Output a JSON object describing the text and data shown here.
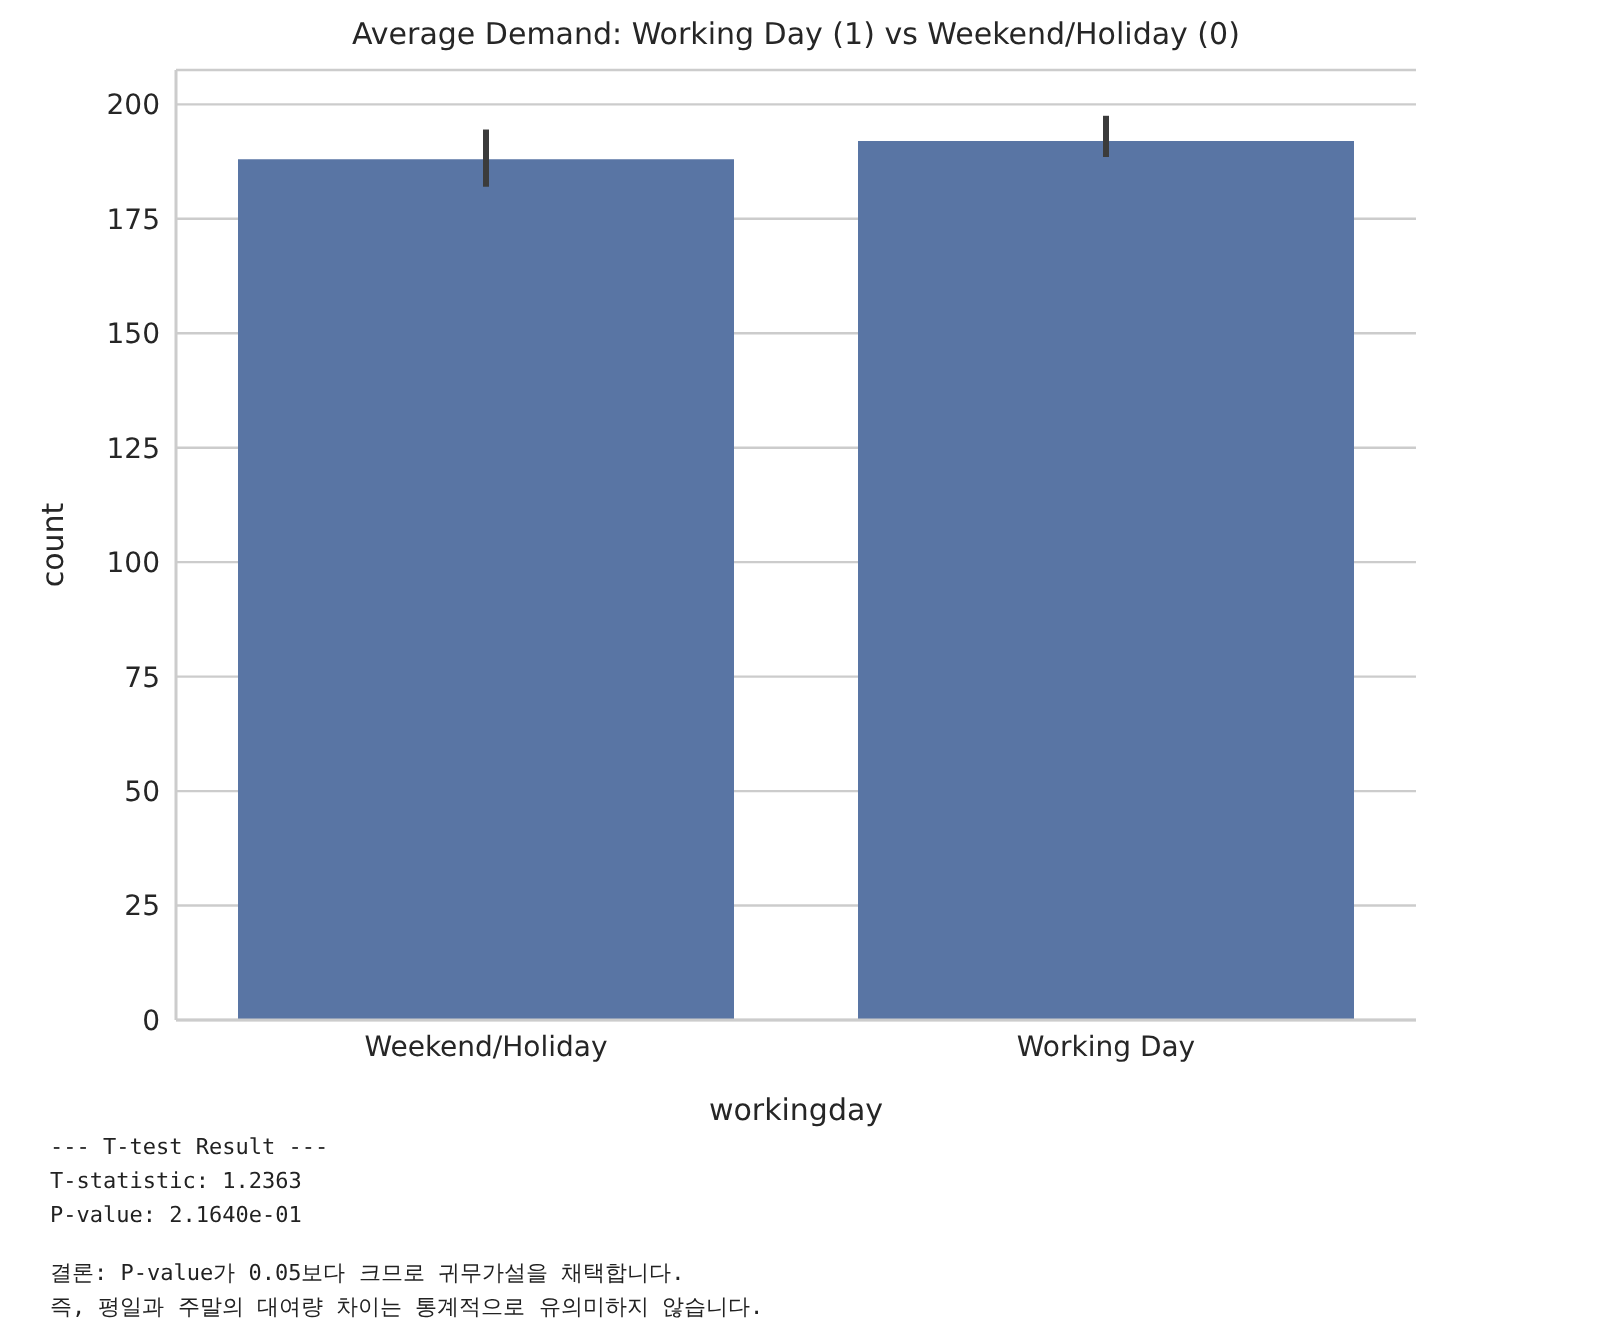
{
  "chart_data": {
    "type": "bar",
    "title": "Average Demand: Working Day (1) vs Weekend/Holiday (0)",
    "xlabel": "workingday",
    "ylabel": "count",
    "categories": [
      "Weekend/Holiday",
      "Working Day"
    ],
    "values": [
      188,
      192
    ],
    "errors": [
      [
        182,
        194.5
      ],
      [
        188.5,
        197.5
      ]
    ],
    "color": "#5975a4",
    "ylim": [
      0,
      207.5
    ],
    "yticks": [
      0,
      25,
      50,
      75,
      100,
      125,
      150,
      175,
      200
    ],
    "grid": "y",
    "legend": false,
    "annotations": [
      "--- T-test Result ---\nT-statistic: 1.2363\nP-value: 2.1640e-01",
      "결론: P-value가 0.05보다 크므로 귀무가설을 채택합니다.\n즉, 평일과 주말의 대여량 차이는 통계적으로 유의미하지 않습니다."
    ]
  }
}
